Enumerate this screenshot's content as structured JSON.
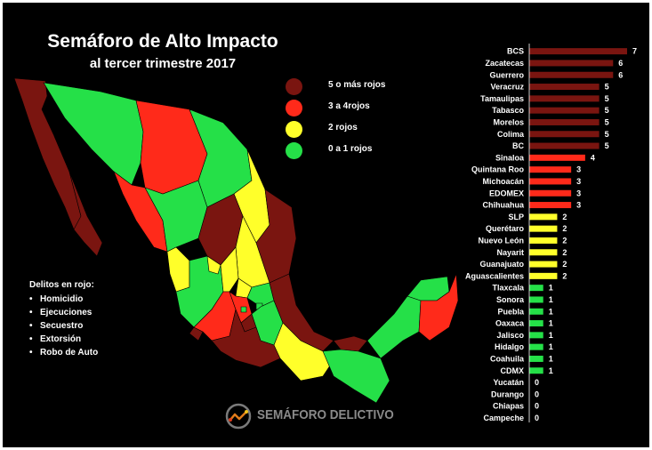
{
  "header": {
    "title": "Semáforo de Alto Impacto",
    "subtitle": "al tercer trimestre 2017"
  },
  "legend": [
    {
      "label": "5 o más rojos",
      "color": "#7a1510"
    },
    {
      "label": "3 a 4rojos",
      "color": "#ff2a1a"
    },
    {
      "label": "2 rojos",
      "color": "#ffff2a"
    },
    {
      "label": "0 a 1 rojos",
      "color": "#25e048"
    }
  ],
  "delitos": {
    "title": "Delitos en rojo:",
    "items": [
      "Homicidio",
      "Ejecuciones",
      "Secuestro",
      "Extorsión",
      "Robo de Auto"
    ]
  },
  "logo": {
    "text": "SEMÁFORO DELICTIVO",
    "icon": "semaforo-logo-icon"
  },
  "chart_data": {
    "type": "bar",
    "orientation": "horizontal",
    "categories": [
      "BCS",
      "Zacatecas",
      "Guerrero",
      "Veracruz",
      "Tamaulipas",
      "Tabasco",
      "Morelos",
      "Colima",
      "BC",
      "Sinaloa",
      "Quintana Roo",
      "Michoacán",
      "EDOMEX",
      "Chihuahua",
      "SLP",
      "Querétaro",
      "Nuevo León",
      "Nayarit",
      "Guanajuato",
      "Aguascalientes",
      "Tlaxcala",
      "Sonora",
      "Puebla",
      "Oaxaca",
      "Jalisco",
      "Hidalgo",
      "Coahuila",
      "CDMX",
      "Yucatán",
      "Durango",
      "Chiapas",
      "Campeche"
    ],
    "values": [
      7,
      6,
      6,
      5,
      5,
      5,
      5,
      5,
      5,
      4,
      3,
      3,
      3,
      3,
      2,
      2,
      2,
      2,
      2,
      2,
      1,
      1,
      1,
      1,
      1,
      1,
      1,
      1,
      0,
      0,
      0,
      0
    ],
    "xlim": [
      0,
      7
    ],
    "grid": false,
    "color_rule": [
      {
        "min": 5,
        "color": "#7a1510"
      },
      {
        "min": 3,
        "color": "#ff2a1a"
      },
      {
        "min": 2,
        "color": "#ffff2a"
      },
      {
        "min": 0,
        "color": "#25e048"
      }
    ]
  }
}
